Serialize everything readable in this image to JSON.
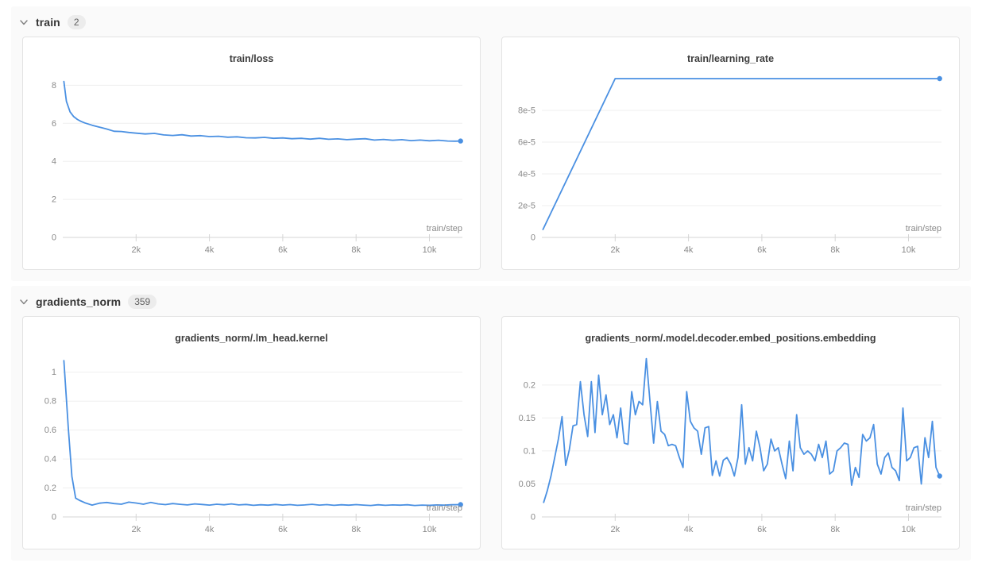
{
  "colors": {
    "line": "#4a90e2",
    "grid": "#efefef",
    "axis": "#d6d6d6",
    "tick_label": "#8a8a8a",
    "title_text": "#3d3d3d",
    "panel_border": "#e3e3e3",
    "section_bg": "#fafafa",
    "badge_bg": "#ececec"
  },
  "sections": [
    {
      "label": "train",
      "count": "2",
      "chevron_icon": "chevron-down",
      "chart_indexes": [
        0,
        1
      ]
    },
    {
      "label": "gradients_norm",
      "count": "359",
      "chevron_icon": "chevron-down",
      "chart_indexes": [
        2,
        3
      ]
    }
  ],
  "chart_data": [
    {
      "type": "line",
      "title": "train/loss",
      "xlabel": "train/step",
      "legend_position": "none",
      "grid": true,
      "xlim": [
        0,
        10900
      ],
      "ylim": [
        0,
        8.6
      ],
      "x_ticks": {
        "values": [
          2000,
          4000,
          6000,
          8000,
          10000
        ],
        "labels": [
          "2k",
          "4k",
          "6k",
          "8k",
          "10k"
        ]
      },
      "y_ticks": {
        "values": [
          0,
          2,
          4,
          6,
          8
        ],
        "labels": [
          "0",
          "2",
          "4",
          "6",
          "8"
        ]
      },
      "x": [
        30,
        100,
        200,
        300,
        400,
        500,
        600,
        800,
        1000,
        1200,
        1400,
        1600,
        1800,
        2000,
        2250,
        2500,
        2750,
        3000,
        3250,
        3500,
        3750,
        4000,
        4250,
        4500,
        4750,
        5000,
        5250,
        5500,
        5750,
        6000,
        6250,
        6500,
        6750,
        7000,
        7250,
        7500,
        7750,
        8000,
        8250,
        8500,
        8750,
        9000,
        9250,
        9500,
        9750,
        10000,
        10250,
        10500,
        10700,
        10850
      ],
      "y": [
        8.2,
        7.15,
        6.6,
        6.35,
        6.2,
        6.1,
        6.02,
        5.9,
        5.8,
        5.7,
        5.58,
        5.57,
        5.52,
        5.48,
        5.44,
        5.47,
        5.39,
        5.36,
        5.4,
        5.33,
        5.35,
        5.3,
        5.32,
        5.27,
        5.29,
        5.24,
        5.23,
        5.26,
        5.21,
        5.23,
        5.19,
        5.21,
        5.17,
        5.21,
        5.16,
        5.18,
        5.14,
        5.17,
        5.19,
        5.12,
        5.15,
        5.11,
        5.14,
        5.09,
        5.12,
        5.08,
        5.11,
        5.07,
        5.06,
        5.07
      ],
      "end_marker": true
    },
    {
      "type": "line",
      "title": "train/learning_rate",
      "xlabel": "train/step",
      "legend_position": "none",
      "grid": true,
      "xlim": [
        0,
        10900
      ],
      "ylim": [
        0,
        0.000103
      ],
      "x_ticks": {
        "values": [
          2000,
          4000,
          6000,
          8000,
          10000
        ],
        "labels": [
          "2k",
          "4k",
          "6k",
          "8k",
          "10k"
        ]
      },
      "y_ticks": {
        "values": [
          0,
          2e-05,
          4e-05,
          6e-05,
          8e-05
        ],
        "labels": [
          "0",
          "2e-5",
          "4e-5",
          "6e-5",
          "8e-5"
        ]
      },
      "x": [
        30,
        2000,
        10850
      ],
      "y": [
        5e-06,
        0.0001,
        0.0001
      ],
      "end_marker": true
    },
    {
      "type": "line",
      "title": "gradients_norm/.lm_head.kernel",
      "xlabel": "train/step",
      "legend_position": "none",
      "grid": true,
      "xlim": [
        0,
        10900
      ],
      "ylim": [
        0,
        1.13
      ],
      "x_ticks": {
        "values": [
          2000,
          4000,
          6000,
          8000,
          10000
        ],
        "labels": [
          "2k",
          "4k",
          "6k",
          "8k",
          "10k"
        ]
      },
      "y_ticks": {
        "values": [
          0,
          0.2,
          0.4,
          0.6,
          0.8,
          1
        ],
        "labels": [
          "0",
          "0.2",
          "0.4",
          "0.6",
          "0.8",
          "1"
        ]
      },
      "x": [
        30,
        150,
        250,
        350,
        450,
        600,
        800,
        1000,
        1200,
        1400,
        1600,
        1800,
        2000,
        2200,
        2400,
        2600,
        2800,
        3000,
        3200,
        3400,
        3600,
        3800,
        4000,
        4200,
        4400,
        4600,
        4800,
        5000,
        5200,
        5400,
        5600,
        5800,
        6000,
        6200,
        6400,
        6600,
        6800,
        7000,
        7200,
        7400,
        7600,
        7800,
        8000,
        8200,
        8400,
        8600,
        8800,
        9000,
        9200,
        9400,
        9600,
        9800,
        10000,
        10200,
        10400,
        10600,
        10850
      ],
      "y": [
        1.08,
        0.62,
        0.28,
        0.13,
        0.115,
        0.098,
        0.082,
        0.095,
        0.1,
        0.092,
        0.088,
        0.102,
        0.096,
        0.088,
        0.1,
        0.09,
        0.085,
        0.092,
        0.087,
        0.083,
        0.09,
        0.086,
        0.082,
        0.088,
        0.084,
        0.09,
        0.083,
        0.086,
        0.08,
        0.084,
        0.081,
        0.086,
        0.082,
        0.085,
        0.08,
        0.083,
        0.087,
        0.082,
        0.085,
        0.08,
        0.084,
        0.081,
        0.085,
        0.082,
        0.079,
        0.084,
        0.08,
        0.083,
        0.081,
        0.084,
        0.079,
        0.082,
        0.08,
        0.083,
        0.081,
        0.084,
        0.085
      ],
      "end_marker": true
    },
    {
      "type": "line",
      "title": "gradients_norm/.model.decoder.embed_positions.embedding",
      "xlabel": "train/step",
      "legend_position": "none",
      "grid": true,
      "xlim": [
        0,
        10900
      ],
      "ylim": [
        0,
        0.248
      ],
      "x_ticks": {
        "values": [
          2000,
          4000,
          6000,
          8000,
          10000
        ],
        "labels": [
          "2k",
          "4k",
          "6k",
          "8k",
          "10k"
        ]
      },
      "y_ticks": {
        "values": [
          0,
          0.05,
          0.1,
          0.15,
          0.2
        ],
        "labels": [
          "0",
          "0.05",
          "0.1",
          "0.15",
          "0.2"
        ]
      },
      "x": [
        50,
        150,
        250,
        350,
        450,
        550,
        650,
        750,
        850,
        950,
        1050,
        1150,
        1250,
        1350,
        1450,
        1550,
        1650,
        1750,
        1850,
        1950,
        2050,
        2150,
        2250,
        2350,
        2450,
        2550,
        2650,
        2750,
        2850,
        2950,
        3050,
        3150,
        3250,
        3350,
        3450,
        3550,
        3650,
        3750,
        3850,
        3950,
        4050,
        4150,
        4250,
        4350,
        4450,
        4550,
        4650,
        4750,
        4850,
        4950,
        5050,
        5150,
        5250,
        5350,
        5450,
        5550,
        5650,
        5750,
        5850,
        5950,
        6050,
        6150,
        6250,
        6350,
        6450,
        6550,
        6650,
        6750,
        6850,
        6950,
        7050,
        7150,
        7250,
        7350,
        7450,
        7550,
        7650,
        7750,
        7850,
        7950,
        8050,
        8150,
        8250,
        8350,
        8450,
        8550,
        8650,
        8750,
        8850,
        8950,
        9050,
        9150,
        9250,
        9350,
        9450,
        9550,
        9650,
        9750,
        9850,
        9950,
        10050,
        10150,
        10250,
        10350,
        10450,
        10550,
        10650,
        10750,
        10850
      ],
      "y": [
        0.022,
        0.04,
        0.062,
        0.09,
        0.118,
        0.152,
        0.078,
        0.102,
        0.138,
        0.14,
        0.205,
        0.155,
        0.122,
        0.205,
        0.128,
        0.215,
        0.155,
        0.185,
        0.14,
        0.155,
        0.12,
        0.165,
        0.112,
        0.11,
        0.19,
        0.155,
        0.175,
        0.17,
        0.24,
        0.175,
        0.112,
        0.175,
        0.13,
        0.125,
        0.108,
        0.11,
        0.108,
        0.09,
        0.075,
        0.19,
        0.145,
        0.135,
        0.13,
        0.095,
        0.135,
        0.137,
        0.063,
        0.085,
        0.062,
        0.086,
        0.09,
        0.08,
        0.062,
        0.09,
        0.17,
        0.08,
        0.105,
        0.085,
        0.13,
        0.105,
        0.07,
        0.08,
        0.118,
        0.1,
        0.105,
        0.08,
        0.058,
        0.115,
        0.07,
        0.155,
        0.105,
        0.095,
        0.1,
        0.095,
        0.085,
        0.11,
        0.09,
        0.115,
        0.065,
        0.07,
        0.1,
        0.105,
        0.112,
        0.11,
        0.048,
        0.075,
        0.06,
        0.125,
        0.115,
        0.12,
        0.14,
        0.08,
        0.065,
        0.09,
        0.097,
        0.075,
        0.07,
        0.055,
        0.165,
        0.085,
        0.09,
        0.105,
        0.107,
        0.05,
        0.12,
        0.09,
        0.145,
        0.075,
        0.062
      ],
      "end_marker": true
    }
  ]
}
